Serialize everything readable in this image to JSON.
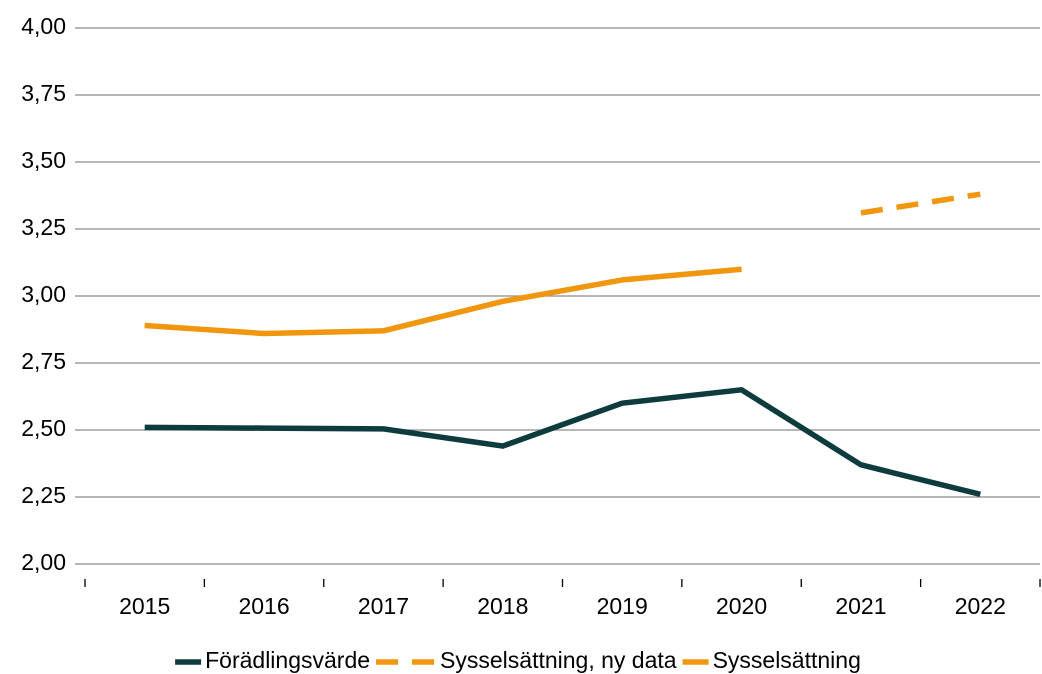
{
  "chart_data": {
    "type": "line",
    "categories": [
      "2015",
      "2016",
      "2017",
      "2018",
      "2019",
      "2020",
      "2021",
      "2022"
    ],
    "series": [
      {
        "name": "Förädlingsvärde",
        "color": "#0d3b3e",
        "values": [
          2.51,
          2.507,
          2.504,
          2.44,
          2.6,
          2.65,
          2.37,
          2.26
        ]
      },
      {
        "name": "Sysselsättning, ny data",
        "color": "#f0960f",
        "dashed": true,
        "values": [
          null,
          null,
          null,
          null,
          null,
          null,
          3.31,
          3.38
        ]
      },
      {
        "name": "Sysselsättning",
        "color": "#f0960f",
        "values": [
          2.89,
          2.86,
          2.87,
          2.98,
          3.06,
          3.1,
          null,
          null
        ]
      }
    ],
    "ylim": [
      2,
      4
    ],
    "yticks": [
      {
        "value": 2,
        "label": "2,00"
      },
      {
        "value": 2.25,
        "label": "2,25"
      },
      {
        "value": 2.5,
        "label": "2,50"
      },
      {
        "value": 2.75,
        "label": "2,75"
      },
      {
        "value": 3,
        "label": "3,00"
      },
      {
        "value": 3.25,
        "label": "3,25"
      },
      {
        "value": 3.5,
        "label": "3,50"
      },
      {
        "value": 3.75,
        "label": "3,75"
      },
      {
        "value": 4,
        "label": "4,00"
      }
    ],
    "grid": true,
    "legend": "bottom"
  }
}
